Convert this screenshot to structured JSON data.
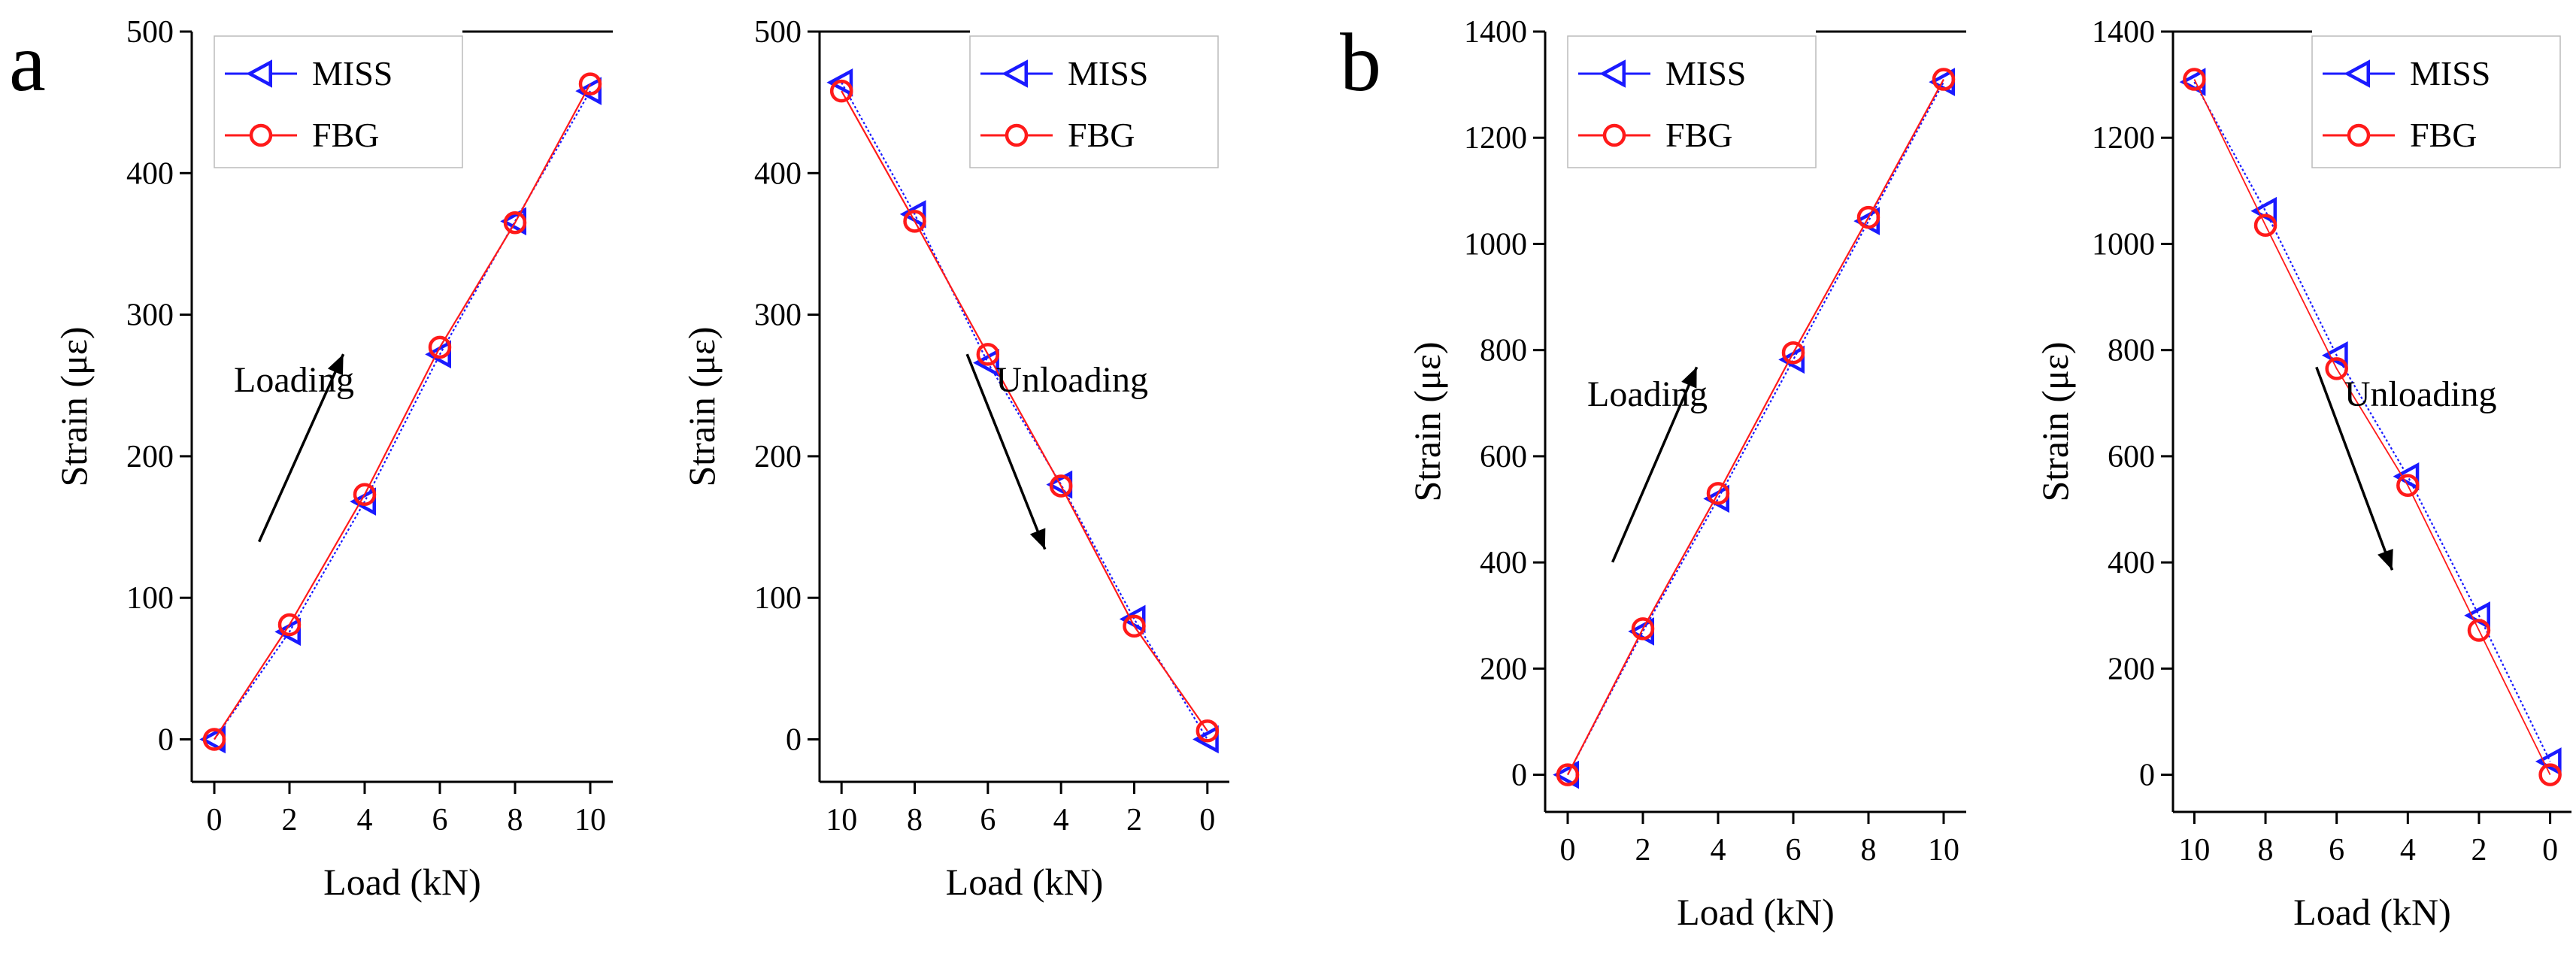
{
  "panel_labels": [
    "a",
    "b"
  ],
  "colors": {
    "miss": "#1a1aff",
    "fbg": "#ff1a1a",
    "axis": "#000000"
  },
  "chart_data": [
    {
      "type": "line",
      "panel": "a",
      "xlabel": "Load (kN)",
      "ylabel": "Strain (με)",
      "xlim": [
        -0.6,
        10.6
      ],
      "ylim": [
        -30,
        500
      ],
      "x_reversed": false,
      "xticks": [
        0,
        2,
        4,
        6,
        8,
        10
      ],
      "yticks": [
        0,
        100,
        200,
        300,
        400,
        500
      ],
      "legend": "top-left",
      "annotation": {
        "text": "Loading",
        "direction": "up"
      },
      "series": [
        {
          "name": "MISS",
          "marker": "triangle-left",
          "x": [
            0,
            2,
            4,
            6,
            8,
            10
          ],
          "y": [
            0,
            76,
            168,
            272,
            366,
            458
          ]
        },
        {
          "name": "FBG",
          "marker": "circle",
          "x": [
            0,
            2,
            4,
            6,
            8,
            10
          ],
          "y": [
            0,
            81,
            173,
            277,
            365,
            463
          ]
        }
      ]
    },
    {
      "type": "line",
      "panel": "a",
      "xlabel": "Load (kN)",
      "ylabel": "Strain (με)",
      "xlim": [
        -0.6,
        10.6
      ],
      "ylim": [
        -30,
        500
      ],
      "x_reversed": true,
      "xticks": [
        10,
        8,
        6,
        4,
        2,
        0
      ],
      "yticks": [
        0,
        100,
        200,
        300,
        400,
        500
      ],
      "legend": "top-right",
      "annotation": {
        "text": "Unloading",
        "direction": "down"
      },
      "series": [
        {
          "name": "MISS",
          "marker": "triangle-left",
          "x": [
            10,
            8,
            6,
            4,
            2,
            0
          ],
          "y": [
            464,
            371,
            266,
            180,
            85,
            0
          ]
        },
        {
          "name": "FBG",
          "marker": "circle",
          "x": [
            10,
            8,
            6,
            4,
            2,
            0
          ],
          "y": [
            458,
            366,
            272,
            179,
            80,
            6
          ]
        }
      ]
    },
    {
      "type": "line",
      "panel": "b",
      "xlabel": "Load (kN)",
      "ylabel": "Strain (με)",
      "xlim": [
        -0.6,
        10.6
      ],
      "ylim": [
        -70,
        1400
      ],
      "x_reversed": false,
      "xticks": [
        0,
        2,
        4,
        6,
        8,
        10
      ],
      "yticks": [
        0,
        200,
        400,
        600,
        800,
        1000,
        1200,
        1400
      ],
      "legend": "top-left",
      "annotation": {
        "text": "Loading",
        "direction": "up"
      },
      "series": [
        {
          "name": "MISS",
          "marker": "triangle-left",
          "x": [
            0,
            2,
            4,
            6,
            8,
            10
          ],
          "y": [
            0,
            270,
            520,
            782,
            1043,
            1305
          ]
        },
        {
          "name": "FBG",
          "marker": "circle",
          "x": [
            0,
            2,
            4,
            6,
            8,
            10
          ],
          "y": [
            0,
            275,
            530,
            795,
            1050,
            1310
          ]
        }
      ]
    },
    {
      "type": "line",
      "panel": "b",
      "xlabel": "Load (kN)",
      "ylabel": "Strain (με)",
      "xlim": [
        -0.6,
        10.6
      ],
      "ylim": [
        -70,
        1400
      ],
      "x_reversed": true,
      "xticks": [
        10,
        8,
        6,
        4,
        2,
        0
      ],
      "yticks": [
        0,
        200,
        400,
        600,
        800,
        1000,
        1200,
        1400
      ],
      "legend": "top-right",
      "annotation": {
        "text": "Unloading",
        "direction": "down"
      },
      "series": [
        {
          "name": "MISS",
          "marker": "triangle-left",
          "x": [
            10,
            8,
            6,
            4,
            2,
            0
          ],
          "y": [
            1305,
            1062,
            790,
            562,
            300,
            25
          ]
        },
        {
          "name": "FBG",
          "marker": "circle",
          "x": [
            10,
            8,
            6,
            4,
            2,
            0
          ],
          "y": [
            1310,
            1035,
            765,
            545,
            272,
            0
          ]
        }
      ]
    }
  ]
}
